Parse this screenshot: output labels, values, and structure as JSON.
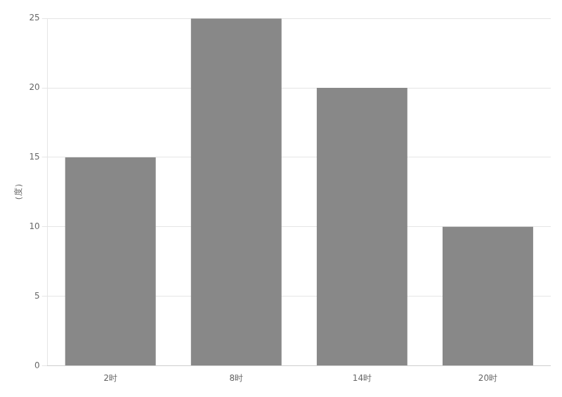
{
  "chart_data": {
    "type": "bar",
    "ylabel": "（度）",
    "categories": [
      "2时",
      "8时",
      "14时",
      "20时"
    ],
    "values": [
      15,
      25,
      20,
      10
    ],
    "color": "#888888",
    "ylim": [
      0,
      25
    ],
    "yticks": [
      0,
      5,
      10,
      15,
      20,
      25
    ],
    "grid": true
  }
}
